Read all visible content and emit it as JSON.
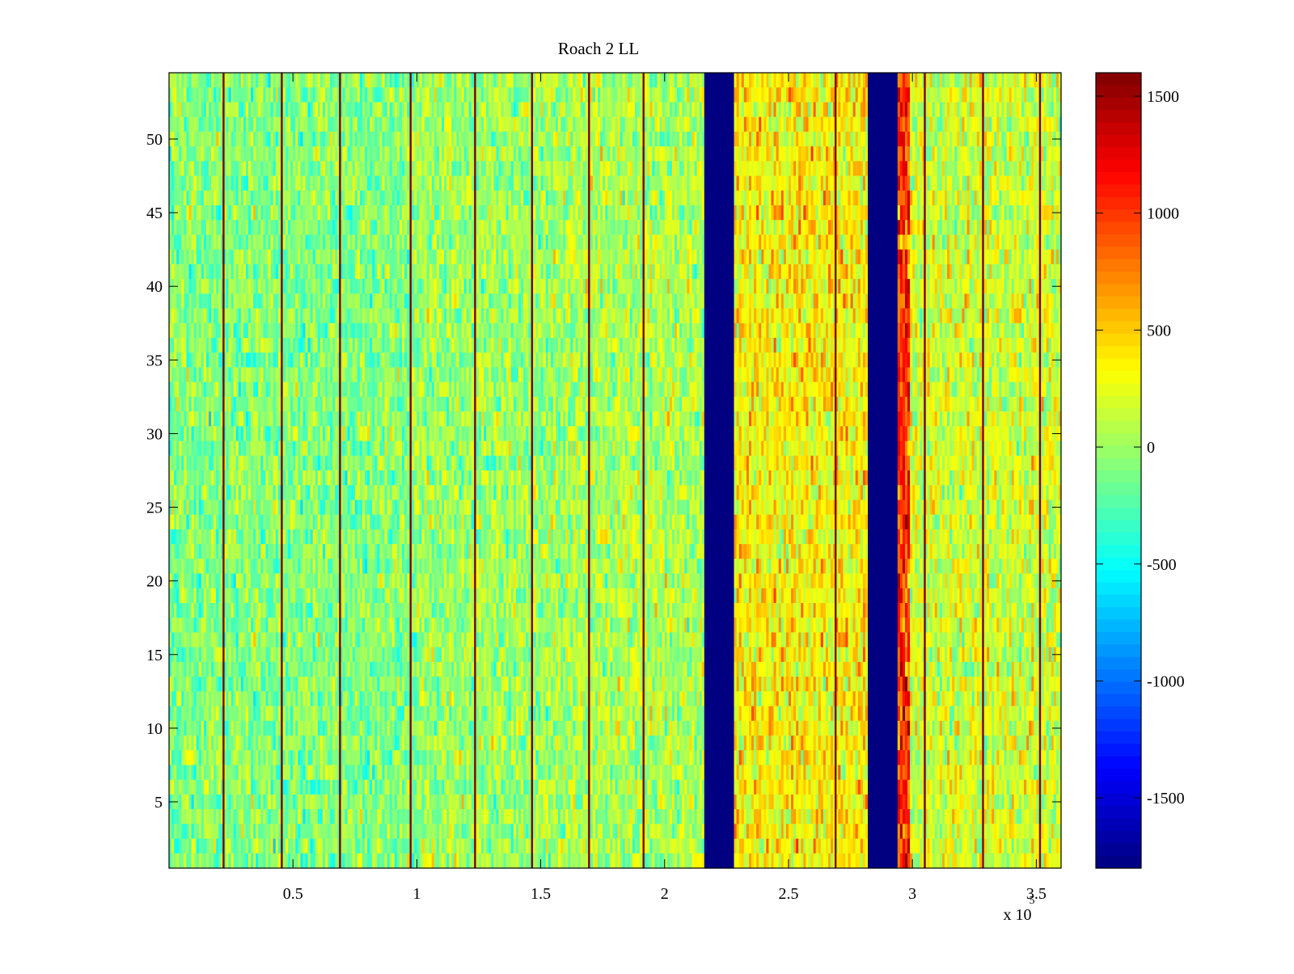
{
  "chart_data": {
    "type": "heatmap",
    "title": "Roach 2 LL",
    "xlabel": "",
    "ylabel": "",
    "x_exponent_label": "x 10",
    "x_exponent_power": "5",
    "xlim": [
      0,
      360000
    ],
    "ylim": [
      0.5,
      54.5
    ],
    "x_ticks": [
      {
        "value": 50000,
        "label": "0.5"
      },
      {
        "value": 100000,
        "label": "1"
      },
      {
        "value": 150000,
        "label": "1.5"
      },
      {
        "value": 200000,
        "label": "2"
      },
      {
        "value": 250000,
        "label": "2.5"
      },
      {
        "value": 300000,
        "label": "3"
      },
      {
        "value": 350000,
        "label": "3.5"
      }
    ],
    "y_ticks": [
      {
        "value": 5,
        "label": "5"
      },
      {
        "value": 10,
        "label": "10"
      },
      {
        "value": 15,
        "label": "15"
      },
      {
        "value": 20,
        "label": "20"
      },
      {
        "value": 25,
        "label": "25"
      },
      {
        "value": 30,
        "label": "30"
      },
      {
        "value": 35,
        "label": "35"
      },
      {
        "value": 40,
        "label": "40"
      },
      {
        "value": 45,
        "label": "45"
      },
      {
        "value": 50,
        "label": "50"
      }
    ],
    "colorbar": {
      "colormap": "jet",
      "clim": [
        -1800,
        1600
      ],
      "ticks": [
        {
          "value": 1500,
          "label": "1500"
        },
        {
          "value": 1000,
          "label": "1000"
        },
        {
          "value": 500,
          "label": "500"
        },
        {
          "value": 0,
          "label": "0"
        },
        {
          "value": -500,
          "label": "-500"
        },
        {
          "value": -1000,
          "label": "-1000"
        },
        {
          "value": -1500,
          "label": "-1500"
        }
      ]
    },
    "rows": 54,
    "x_bins": 360,
    "background_regions": [
      {
        "x_start": 0,
        "x_end": 100000,
        "mean": -80,
        "spread": 300
      },
      {
        "x_start": 100000,
        "x_end": 160000,
        "mean": 0,
        "spread": 300
      },
      {
        "x_start": 160000,
        "x_end": 216000,
        "mean": 60,
        "spread": 300
      },
      {
        "x_start": 216000,
        "x_end": 228000,
        "mean": -1800,
        "spread": 0
      },
      {
        "x_start": 228000,
        "x_end": 282000,
        "mean": 350,
        "spread": 330
      },
      {
        "x_start": 282000,
        "x_end": 294000,
        "mean": -1800,
        "spread": 0
      },
      {
        "x_start": 294000,
        "x_end": 299000,
        "mean": 1000,
        "spread": 400
      },
      {
        "x_start": 299000,
        "x_end": 360000,
        "mean": 180,
        "spread": 320
      }
    ],
    "vertical_lines": [
      {
        "x": 22000,
        "value": 1600
      },
      {
        "x": 45500,
        "value": 1600
      },
      {
        "x": 69000,
        "value": 1600
      },
      {
        "x": 97500,
        "value": 1600
      },
      {
        "x": 123500,
        "value": 1600
      },
      {
        "x": 146500,
        "value": 1600
      },
      {
        "x": 169500,
        "value": 1600
      },
      {
        "x": 191500,
        "value": 1600
      },
      {
        "x": 269000,
        "value": 1600
      },
      {
        "x": 305000,
        "value": 1600
      },
      {
        "x": 328500,
        "value": 1600
      },
      {
        "x": 351500,
        "value": 1600
      }
    ]
  }
}
